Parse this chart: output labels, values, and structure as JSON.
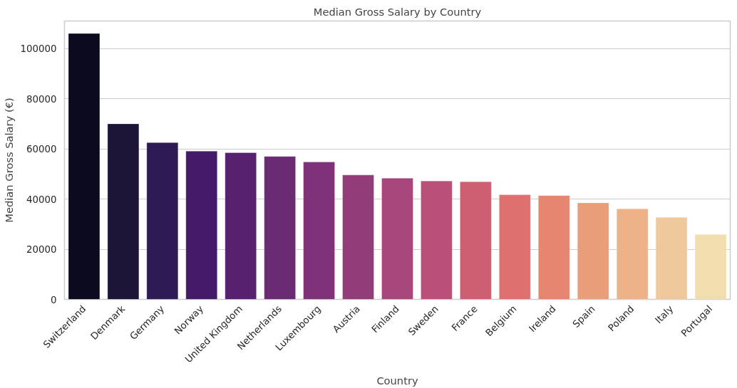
{
  "chart_data": {
    "type": "bar",
    "title": "Median Gross Salary by Country",
    "xlabel": "Country",
    "ylabel": "Median Gross Salary (€)",
    "categories": [
      "Switzerland",
      "Denmark",
      "Germany",
      "Norway",
      "United Kingdom",
      "Netherlands",
      "Luxembourg",
      "Austria",
      "Finland",
      "Sweden",
      "France",
      "Belgium",
      "Ireland",
      "Spain",
      "Poland",
      "Italy",
      "Portugal"
    ],
    "values": [
      106000,
      70000,
      62500,
      59100,
      58500,
      57000,
      54800,
      49600,
      48300,
      47200,
      46900,
      41700,
      41400,
      38500,
      36100,
      32700,
      25900
    ],
    "colors": [
      "#0c0a1f",
      "#1c1537",
      "#2e1b55",
      "#451b69",
      "#582170",
      "#6a2b74",
      "#7e3278",
      "#923d7a",
      "#a6467a",
      "#ba5077",
      "#ce5f72",
      "#de716f",
      "#e68670",
      "#e99d79",
      "#eeb288",
      "#efc89b",
      "#f2ddaf"
    ],
    "ylim": [
      0,
      111000
    ],
    "yticks": [
      0,
      20000,
      40000,
      60000,
      80000,
      100000
    ],
    "grid": "y"
  }
}
